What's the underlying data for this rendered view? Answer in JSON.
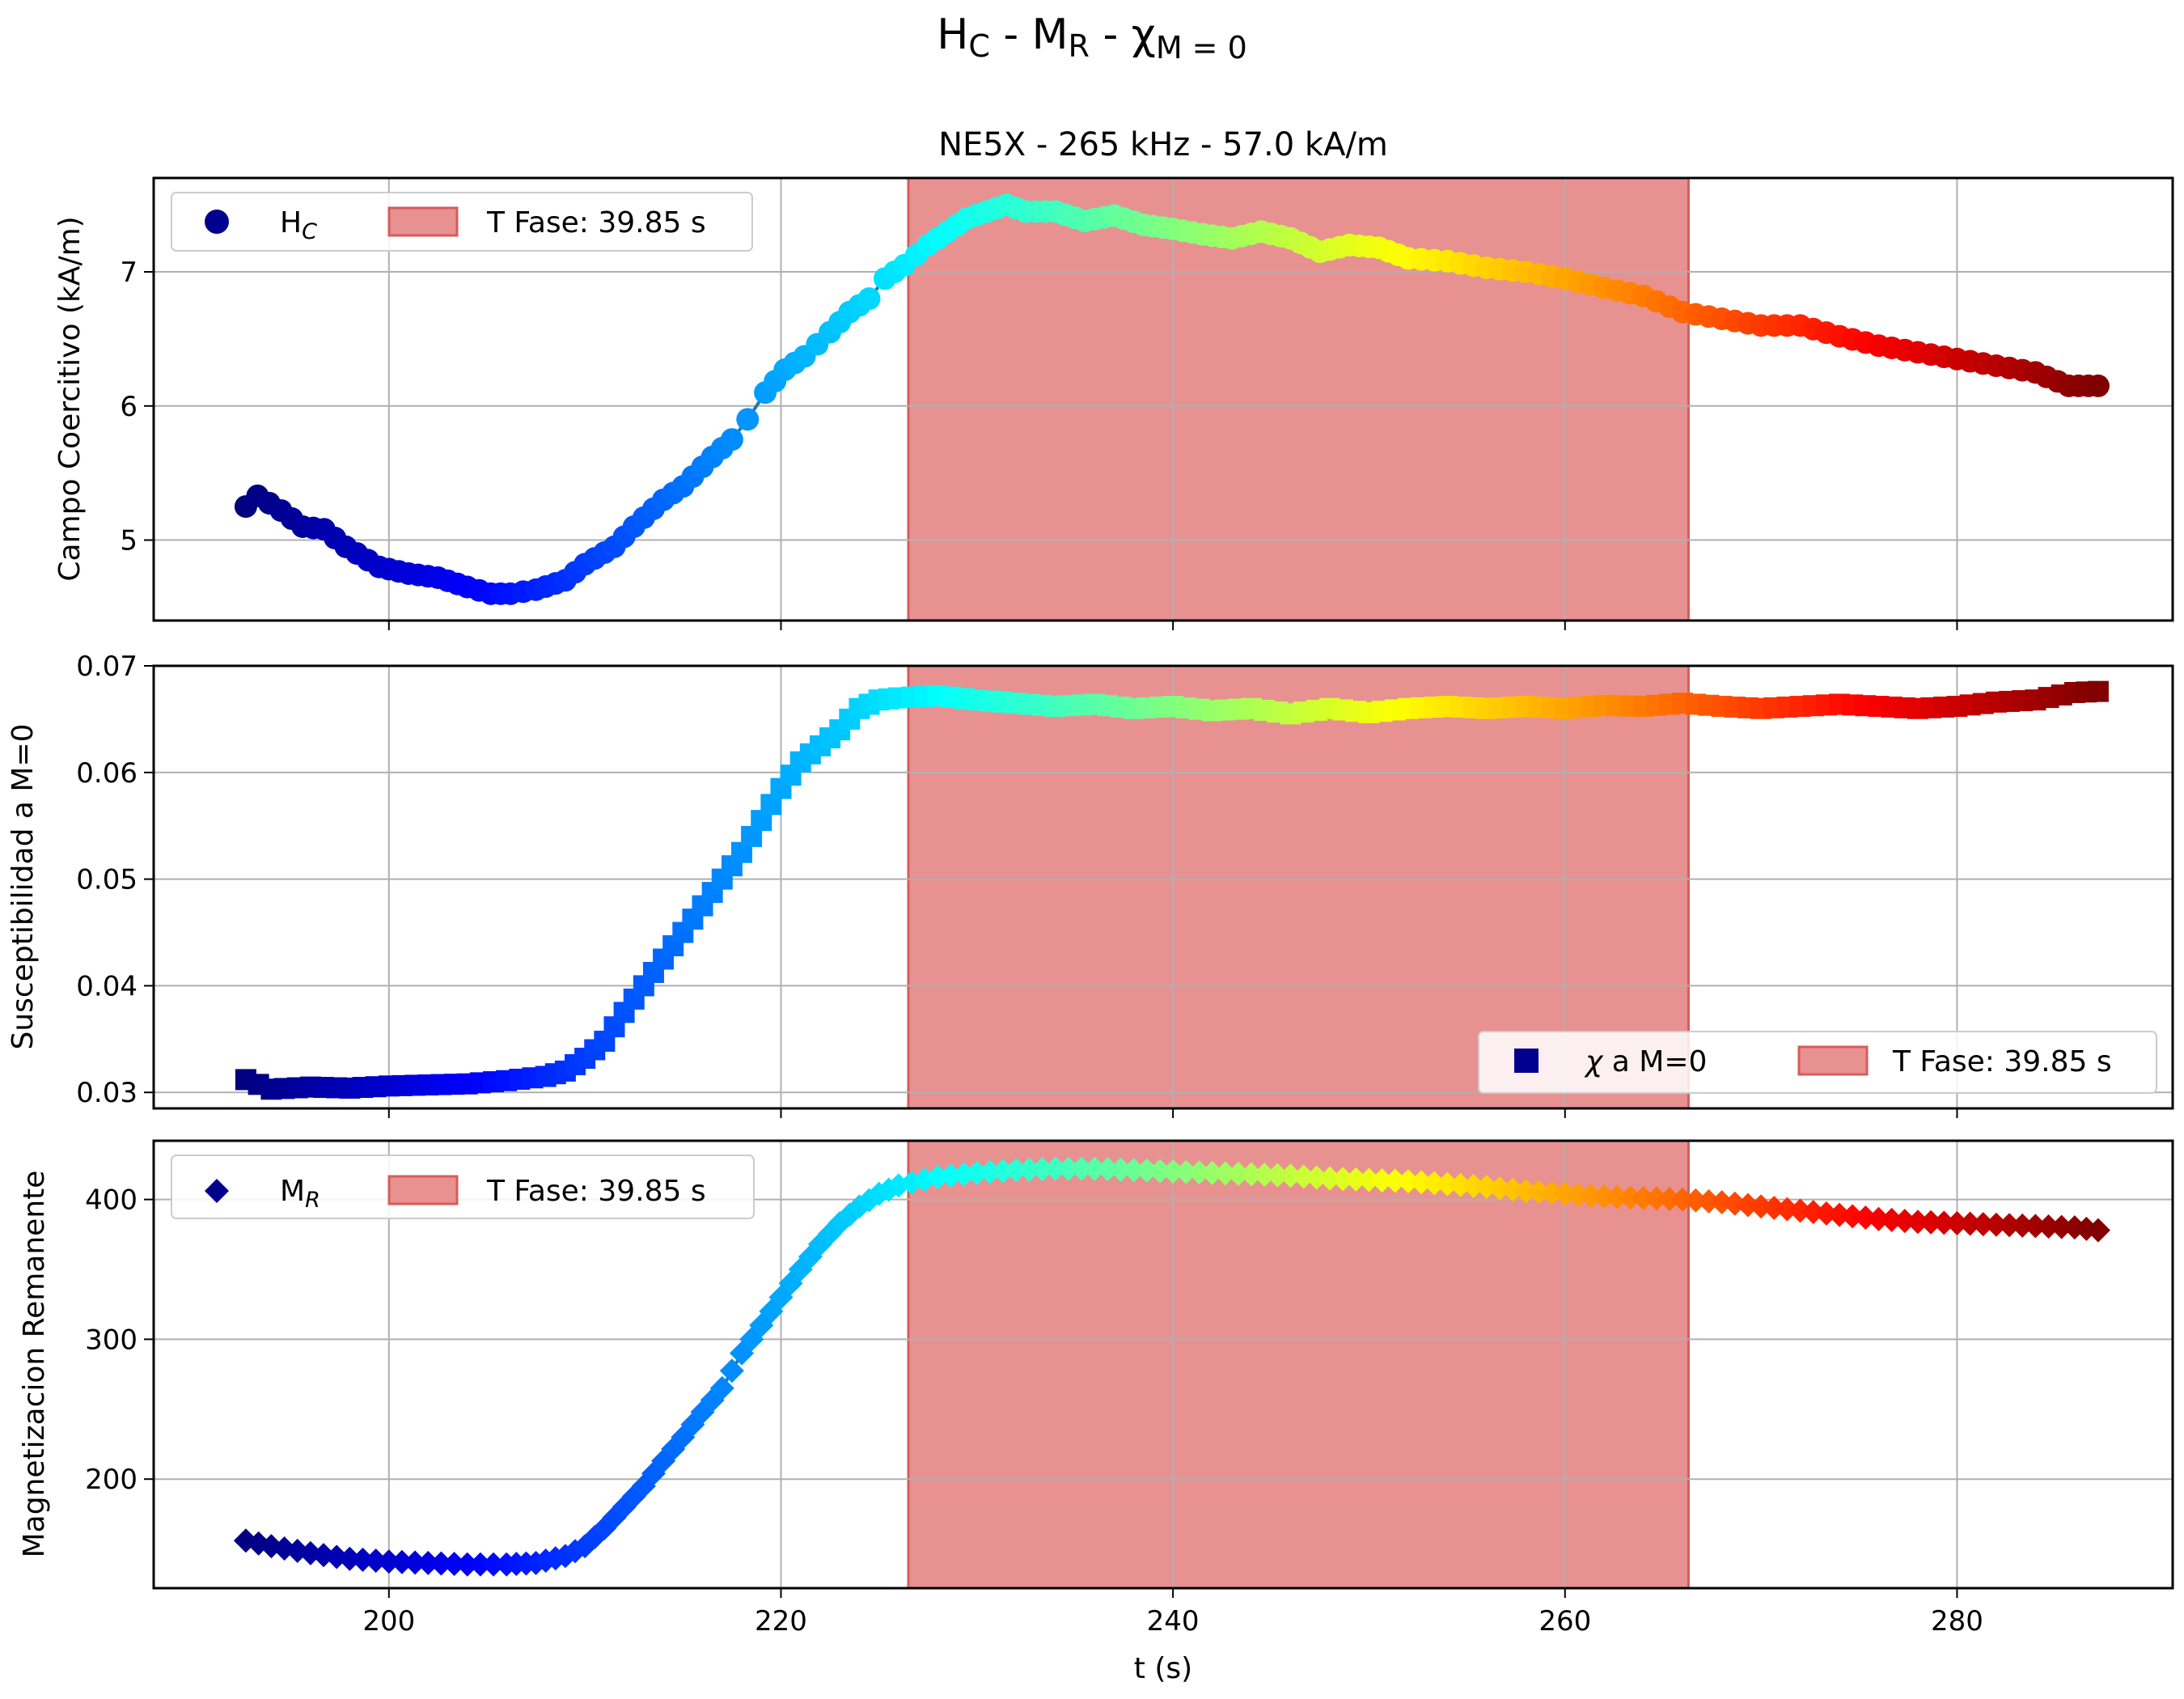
{
  "figure": {
    "suptitle": "H_C - M_R - χ_{M=0}",
    "subtitle": "NE5X - 265 kHz - 57.0 kA/m",
    "xlabel": "t (s)",
    "xlim": [
      188,
      291
    ],
    "xticks": [
      200,
      220,
      240,
      260,
      280
    ]
  },
  "chart_data": [
    {
      "type": "scatter",
      "name": "coercive-field",
      "title": "NE5X - 265 kHz - 57.0 kA/m",
      "xlabel": "t (s)",
      "ylabel": "Campo Coercitivo (kA/m)",
      "ylim": [
        4.4,
        7.7
      ],
      "yticks": [
        5,
        6,
        7
      ],
      "grid": true,
      "marker": "circle",
      "colormap": "jet",
      "legend": {
        "position": "top-left",
        "entries": [
          "H_C",
          "T Fase: 39.85 s"
        ]
      },
      "phase_span": {
        "label": "T Fase: 39.85 s",
        "x_start": 226.5,
        "x_end": 266.3,
        "color": "#e89090"
      },
      "x_range": [
        192.7,
        287.2
      ],
      "series": [
        {
          "name": "H_C",
          "points": [
            [
              192.7,
              5.25
            ],
            [
              193.3,
              5.33
            ],
            [
              194.5,
              5.22
            ],
            [
              195.6,
              5.1
            ],
            [
              196.7,
              5.08
            ],
            [
              197.8,
              4.95
            ],
            [
              199.5,
              4.8
            ],
            [
              201,
              4.75
            ],
            [
              202.5,
              4.72
            ],
            [
              204,
              4.65
            ],
            [
              205.2,
              4.6
            ],
            [
              206.2,
              4.6
            ],
            [
              207.5,
              4.63
            ],
            [
              209,
              4.7
            ],
            [
              210,
              4.82
            ],
            [
              211.5,
              4.95
            ],
            [
              212.5,
              5.1
            ],
            [
              214,
              5.3
            ],
            [
              215,
              5.4
            ],
            [
              216.5,
              5.62
            ],
            [
              217.5,
              5.75
            ],
            [
              218.3,
              5.9
            ],
            [
              219.2,
              6.1
            ],
            [
              220.2,
              6.27
            ],
            [
              221.2,
              6.37
            ],
            [
              222.5,
              6.55
            ],
            [
              223.5,
              6.7
            ],
            [
              224.5,
              6.8
            ],
            [
              225.3,
              6.95
            ],
            [
              226.3,
              7.05
            ],
            [
              227.5,
              7.2
            ],
            [
              228.5,
              7.3
            ],
            [
              229.5,
              7.4
            ],
            [
              230.5,
              7.45
            ],
            [
              231.5,
              7.5
            ],
            [
              232.5,
              7.45
            ],
            [
              234,
              7.45
            ],
            [
              235.5,
              7.38
            ],
            [
              237,
              7.42
            ],
            [
              238.5,
              7.35
            ],
            [
              240,
              7.32
            ],
            [
              241.5,
              7.28
            ],
            [
              243,
              7.25
            ],
            [
              244.5,
              7.3
            ],
            [
              246,
              7.25
            ],
            [
              247.5,
              7.15
            ],
            [
              249,
              7.2
            ],
            [
              250.5,
              7.18
            ],
            [
              252,
              7.1
            ],
            [
              254,
              7.08
            ],
            [
              256,
              7.03
            ],
            [
              258,
              7
            ],
            [
              260,
              6.95
            ],
            [
              262,
              6.88
            ],
            [
              264,
              6.82
            ],
            [
              266,
              6.7
            ],
            [
              268,
              6.65
            ],
            [
              270,
              6.6
            ],
            [
              272,
              6.6
            ],
            [
              274,
              6.52
            ],
            [
              276,
              6.45
            ],
            [
              278,
              6.4
            ],
            [
              280,
              6.35
            ],
            [
              282,
              6.3
            ],
            [
              284,
              6.25
            ],
            [
              285.7,
              6.15
            ],
            [
              287.2,
              6.15
            ]
          ]
        }
      ]
    },
    {
      "type": "scatter",
      "name": "susceptibility",
      "xlabel": "t (s)",
      "ylabel": "Susceptibilidad a M=0",
      "ylim": [
        0.0285,
        0.07
      ],
      "yticks": [
        0.03,
        0.04,
        0.05,
        0.06,
        0.07
      ],
      "ytick_labels": [
        "0.03",
        "0.04",
        "0.05",
        "0.06",
        "0.07"
      ],
      "grid": true,
      "marker": "square",
      "colormap": "jet",
      "legend": {
        "position": "bottom-right",
        "entries": [
          "χ a M=0",
          "T Fase: 39.85 s"
        ]
      },
      "phase_span": {
        "label": "T Fase: 39.85 s",
        "x_start": 226.5,
        "x_end": 266.3,
        "color": "#e89090"
      },
      "x_range": [
        192.7,
        287.2
      ],
      "series": [
        {
          "name": "χ a M=0",
          "points": [
            [
              192.7,
              0.0312
            ],
            [
              194,
              0.0303
            ],
            [
              196,
              0.0305
            ],
            [
              198,
              0.0304
            ],
            [
              200,
              0.0306
            ],
            [
              202,
              0.0307
            ],
            [
              204,
              0.0308
            ],
            [
              206,
              0.0311
            ],
            [
              208,
              0.0315
            ],
            [
              209,
              0.032
            ],
            [
              210,
              0.0332
            ],
            [
              211,
              0.0348
            ],
            [
              212,
              0.0375
            ],
            [
              213,
              0.04
            ],
            [
              214,
              0.0425
            ],
            [
              215,
              0.045
            ],
            [
              216,
              0.0475
            ],
            [
              217,
              0.05
            ],
            [
              218,
              0.0525
            ],
            [
              219,
              0.0555
            ],
            [
              220,
              0.0585
            ],
            [
              221,
              0.061
            ],
            [
              222,
              0.0625
            ],
            [
              223,
              0.064
            ],
            [
              224,
              0.066
            ],
            [
              225,
              0.0668
            ],
            [
              226,
              0.067
            ],
            [
              228,
              0.0672
            ],
            [
              230,
              0.0668
            ],
            [
              232,
              0.0665
            ],
            [
              234,
              0.0662
            ],
            [
              236,
              0.0664
            ],
            [
              238,
              0.066
            ],
            [
              240,
              0.0662
            ],
            [
              242,
              0.0658
            ],
            [
              244,
              0.066
            ],
            [
              246,
              0.0655
            ],
            [
              248,
              0.066
            ],
            [
              250,
              0.0656
            ],
            [
              252,
              0.066
            ],
            [
              254,
              0.0662
            ],
            [
              256,
              0.066
            ],
            [
              258,
              0.0662
            ],
            [
              260,
              0.066
            ],
            [
              262,
              0.0663
            ],
            [
              264,
              0.0662
            ],
            [
              266,
              0.0665
            ],
            [
              268,
              0.0662
            ],
            [
              270,
              0.066
            ],
            [
              272,
              0.0662
            ],
            [
              274,
              0.0664
            ],
            [
              276,
              0.0662
            ],
            [
              278,
              0.066
            ],
            [
              280,
              0.0662
            ],
            [
              282,
              0.0666
            ],
            [
              284,
              0.0668
            ],
            [
              286,
              0.0675
            ],
            [
              287.2,
              0.0676
            ]
          ]
        }
      ]
    },
    {
      "type": "scatter",
      "name": "remanent-magnetization",
      "xlabel": "t (s)",
      "ylabel": "Magnetizacion Remanente",
      "ylim": [
        122,
        442
      ],
      "yticks": [
        200,
        300,
        400
      ],
      "grid": true,
      "marker": "diamond",
      "colormap": "jet",
      "legend": {
        "position": "top-left",
        "entries": [
          "M_R",
          "T Fase: 39.85 s"
        ]
      },
      "phase_span": {
        "label": "T Fase: 39.85 s",
        "x_start": 226.5,
        "x_end": 266.3,
        "color": "#e89090"
      },
      "x_range": [
        192.7,
        287.2
      ],
      "series": [
        {
          "name": "M_R",
          "points": [
            [
              192.7,
              156
            ],
            [
              194,
              152
            ],
            [
              196,
              147
            ],
            [
              198,
              143
            ],
            [
              200,
              141
            ],
            [
              202,
              140
            ],
            [
              204,
              139
            ],
            [
              206,
              139
            ],
            [
              207.5,
              140
            ],
            [
              209,
              145
            ],
            [
              210,
              152
            ],
            [
              211,
              165
            ],
            [
              212,
              180
            ],
            [
              213,
              195
            ],
            [
              214,
              213
            ],
            [
              215,
              230
            ],
            [
              216,
              248
            ],
            [
              217,
              265
            ],
            [
              218,
              290
            ],
            [
              219,
              310
            ],
            [
              220,
              330
            ],
            [
              221,
              350
            ],
            [
              222,
              368
            ],
            [
              223,
              383
            ],
            [
              224,
              395
            ],
            [
              225,
              404
            ],
            [
              226,
              410
            ],
            [
              228,
              416
            ],
            [
              230,
              419
            ],
            [
              232,
              421
            ],
            [
              234,
              422
            ],
            [
              236,
              422
            ],
            [
              238,
              421
            ],
            [
              240,
              420
            ],
            [
              242,
              419
            ],
            [
              244,
              418
            ],
            [
              246,
              417
            ],
            [
              248,
              415
            ],
            [
              250,
              414
            ],
            [
              252,
              413
            ],
            [
              254,
              411
            ],
            [
              256,
              409
            ],
            [
              258,
              406
            ],
            [
              260,
              404
            ],
            [
              262,
              402
            ],
            [
              264,
              401
            ],
            [
              266,
              400
            ],
            [
              268,
              398
            ],
            [
              270,
              395
            ],
            [
              272,
              392
            ],
            [
              274,
              389
            ],
            [
              276,
              386
            ],
            [
              278,
              384
            ],
            [
              280,
              383
            ],
            [
              282,
              382
            ],
            [
              284,
              381
            ],
            [
              286,
              380
            ],
            [
              287.2,
              378
            ]
          ]
        }
      ]
    }
  ]
}
